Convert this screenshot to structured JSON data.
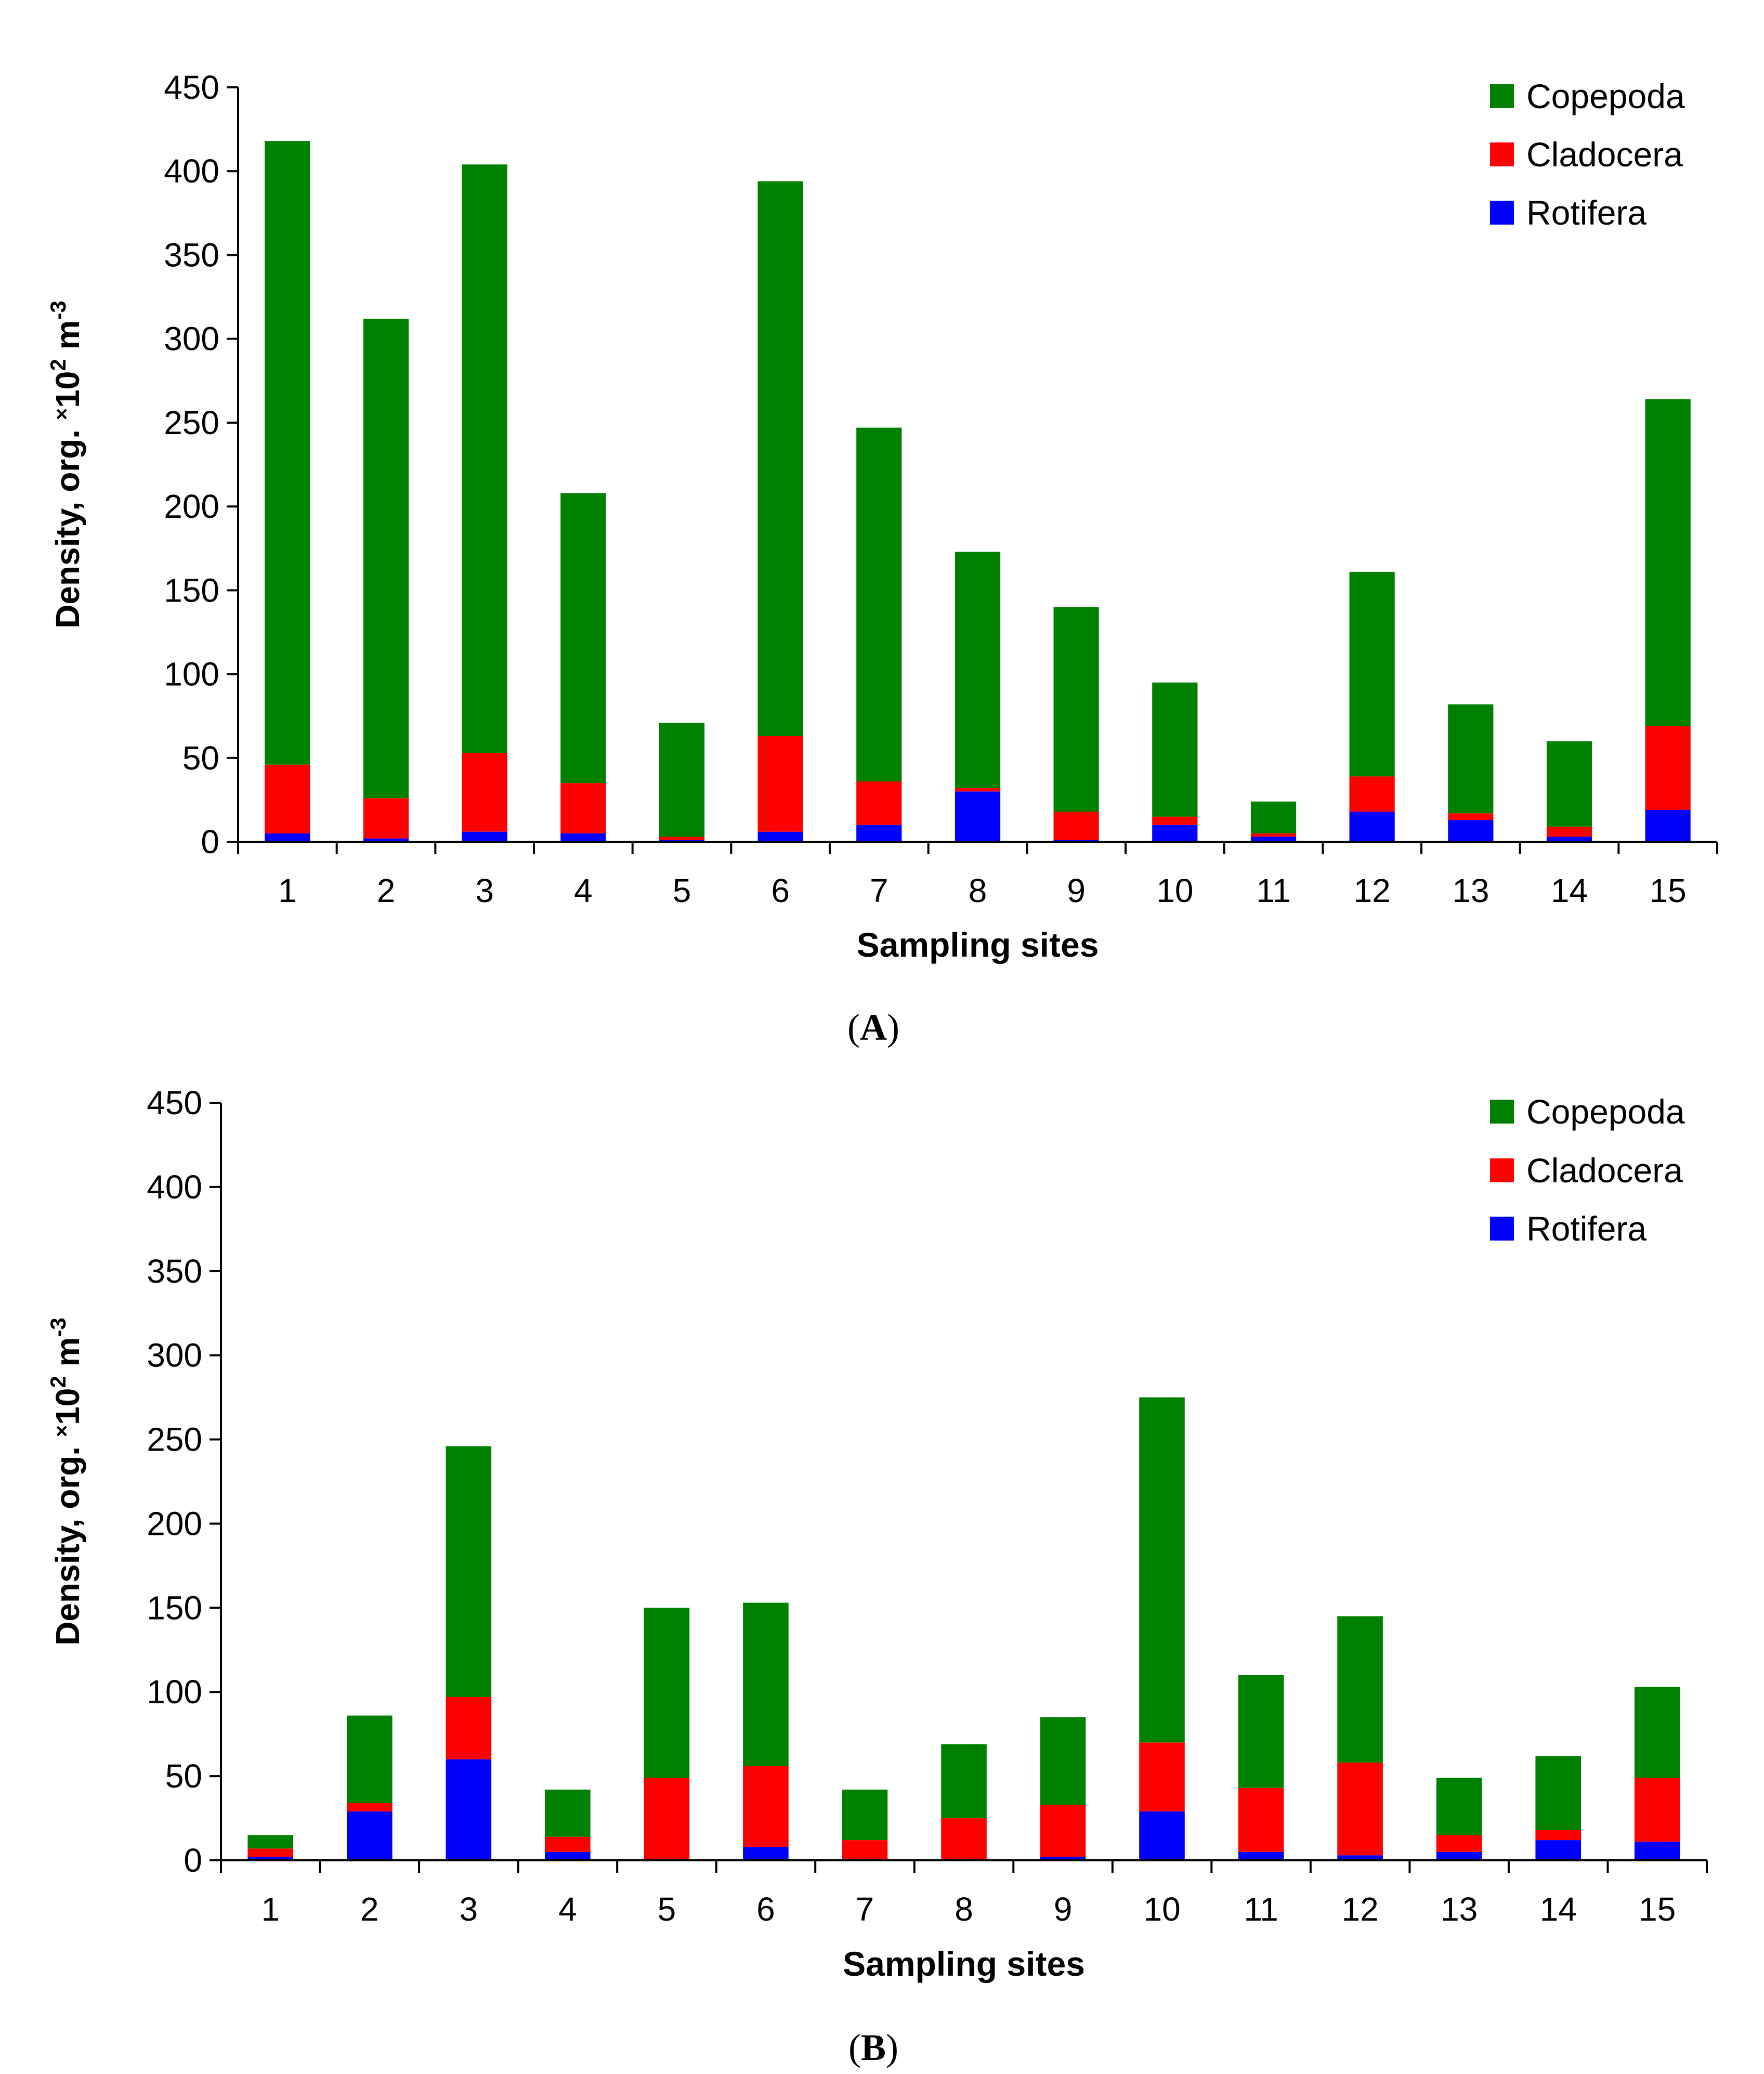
{
  "colors": {
    "Copepoda": "#008000",
    "Cladocera": "#ff0000",
    "Rotifera": "#0000ff",
    "axis": "#000000"
  },
  "chart_data": [
    {
      "panel": "(A)",
      "panel_parts": {
        "open": "(",
        "letter": "A",
        "close": ")"
      },
      "type": "bar",
      "stacked": true,
      "ylabel": "Density, org. ×10² m⁻³",
      "ylabel_parts": {
        "main": "Density, org. ",
        "times": "×",
        "ten": "10",
        "exp1": "2",
        "m": " m",
        "exp2": "-3"
      },
      "xlabel": "Sampling sites",
      "ylim": [
        0,
        450
      ],
      "yticks": [
        "0",
        "50",
        "100",
        "150",
        "200",
        "250",
        "300",
        "350",
        "400",
        "450"
      ],
      "grid": false,
      "legend_position": "top-right",
      "categories": [
        "1",
        "2",
        "3",
        "4",
        "5",
        "6",
        "7",
        "8",
        "9",
        "10",
        "11",
        "12",
        "13",
        "14",
        "15"
      ],
      "series": [
        {
          "name": "Rotifera",
          "values": [
            5,
            2,
            6,
            5,
            1,
            6,
            10,
            30,
            1,
            10,
            3,
            18,
            13,
            3,
            19
          ]
        },
        {
          "name": "Cladocera",
          "values": [
            41,
            24,
            47,
            30,
            2,
            57,
            26,
            2,
            17,
            5,
            2,
            21,
            4,
            6,
            50
          ]
        },
        {
          "name": "Copepoda",
          "values": [
            372,
            286,
            351,
            173,
            68,
            331,
            211,
            141,
            122,
            80,
            19,
            122,
            65,
            51,
            195
          ]
        }
      ],
      "legend": [
        "Copepoda",
        "Cladocera",
        "Rotifera"
      ]
    },
    {
      "panel": "(B)",
      "panel_parts": {
        "open": "(",
        "letter": "B",
        "close": ")"
      },
      "type": "bar",
      "stacked": true,
      "ylabel": "Density, org. ×10² m⁻³",
      "ylabel_parts": {
        "main": "Density, org. ",
        "times": "×",
        "ten": "10",
        "exp1": "2",
        "m": " m",
        "exp2": "-3"
      },
      "xlabel": "Sampling sites",
      "ylim": [
        0,
        450
      ],
      "yticks": [
        "0",
        "50",
        "100",
        "150",
        "200",
        "250",
        "300",
        "350",
        "400",
        "450"
      ],
      "grid": false,
      "legend_position": "top-right",
      "categories": [
        "1",
        "2",
        "3",
        "4",
        "5",
        "6",
        "7",
        "8",
        "9",
        "10",
        "11",
        "12",
        "13",
        "14",
        "15"
      ],
      "series": [
        {
          "name": "Rotifera",
          "values": [
            2,
            29,
            60,
            5,
            0,
            8,
            0,
            0,
            2,
            29,
            5,
            3,
            5,
            12,
            11
          ]
        },
        {
          "name": "Cladocera",
          "values": [
            5,
            5,
            37,
            9,
            49,
            48,
            12,
            25,
            31,
            41,
            38,
            55,
            10,
            6,
            38
          ]
        },
        {
          "name": "Copepoda",
          "values": [
            8,
            52,
            149,
            28,
            101,
            97,
            30,
            44,
            52,
            205,
            67,
            87,
            34,
            44,
            54
          ]
        }
      ],
      "legend": [
        "Copepoda",
        "Cladocera",
        "Rotifera"
      ]
    }
  ]
}
